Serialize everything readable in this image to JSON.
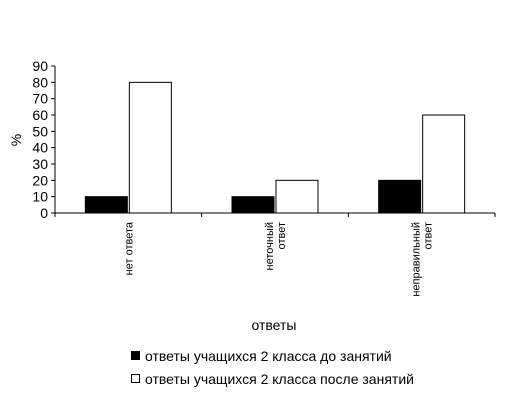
{
  "chart_data": {
    "type": "bar",
    "categories": [
      [
        "нет ответа"
      ],
      [
        "неточный",
        "ответ"
      ],
      [
        "неправильный",
        "ответ"
      ]
    ],
    "series": [
      {
        "name": "ответы учащихся 2 класса до занятий",
        "values": [
          10,
          10,
          20
        ],
        "color": "#000000"
      },
      {
        "name": "ответы учащихся 2 класса после занятий",
        "values": [
          80,
          20,
          60
        ],
        "color": "#ffffff"
      }
    ],
    "ylim": [
      0,
      90
    ],
    "yticks": [
      0,
      10,
      20,
      30,
      40,
      50,
      60,
      70,
      80,
      90
    ],
    "ylabel": "%",
    "xlabel": "ответы",
    "legend_position": "bottom"
  }
}
